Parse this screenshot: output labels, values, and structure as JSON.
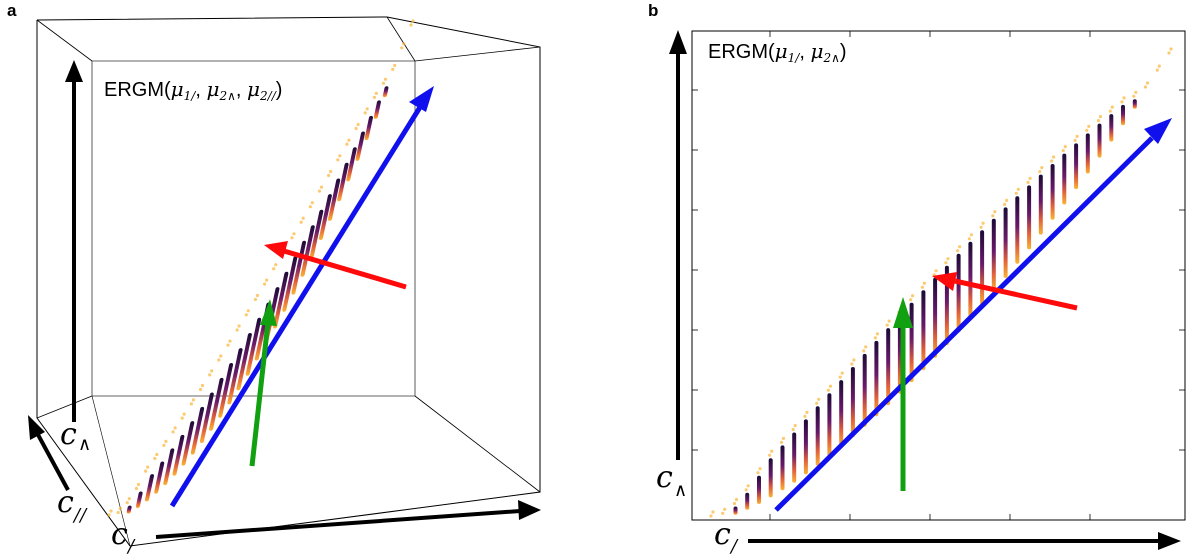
{
  "panel_a": {
    "letter": "a",
    "model_prefix": "ERGM(",
    "model_params": "μ",
    "model_sub_1": "1/",
    "model_sub_2": "2∧",
    "model_sub_3": "2//",
    "axis_up_label": "c",
    "axis_up_sub": "∧",
    "axis_depth_label": "c",
    "axis_depth_sub": "//",
    "axis_right_label": "c",
    "axis_right_sub": "/"
  },
  "panel_b": {
    "letter": "b",
    "model_prefix": "ERGM(",
    "model_params": "μ",
    "model_sub_1": "1/",
    "model_sub_2": "2∧",
    "axis_up_label": "c",
    "axis_up_sub": "∧",
    "axis_right_label": "c",
    "axis_right_sub": "/"
  },
  "colors": {
    "blue_arrow": "#1010ee",
    "red_arrow": "#ff0a0a",
    "green_arrow": "#10a010",
    "data_dark": "#1a0a35",
    "data_mid": "#a8306a",
    "data_light": "#fba832"
  }
}
